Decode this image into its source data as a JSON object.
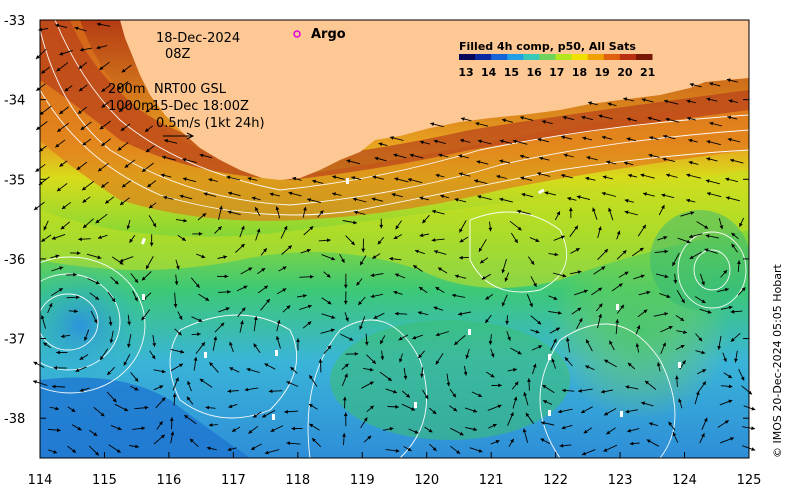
{
  "map": {
    "date": "18-Dec-2024",
    "hour": "08Z",
    "argo_label": "Argo",
    "depth_shallow": "200m",
    "depth_deep": "1000m",
    "product": "NRT00 GSL",
    "product_date": "15-Dec 18:00Z",
    "scale_text": "0.5m/s (1kt 24h)",
    "credit": "© IMOS 20-Dec-2024 05:05 Hobart",
    "x_ticks": [
      "114",
      "115",
      "116",
      "117",
      "118",
      "119",
      "120",
      "121",
      "122",
      "123",
      "124",
      "125"
    ],
    "y_ticks": [
      "-33",
      "-34",
      "-35",
      "-36",
      "-37",
      "-38"
    ],
    "lon_range": [
      114,
      125
    ],
    "lat_range": [
      -38.5,
      -33
    ],
    "colors": {
      "land": "#fdc894",
      "argo_marker": "#e000e0"
    }
  },
  "colorbar": {
    "title": "Filled 4h comp, p50, All Sats",
    "labels": [
      "13",
      "14",
      "15",
      "16",
      "17",
      "18",
      "19",
      "20",
      "21"
    ],
    "colors": [
      "#08085a",
      "#0a2aa0",
      "#1565d8",
      "#21a0e8",
      "#38c8b8",
      "#6fd25a",
      "#b4e61e",
      "#f0e000",
      "#f0a000",
      "#e06010",
      "#b83010",
      "#7a1808"
    ]
  }
}
